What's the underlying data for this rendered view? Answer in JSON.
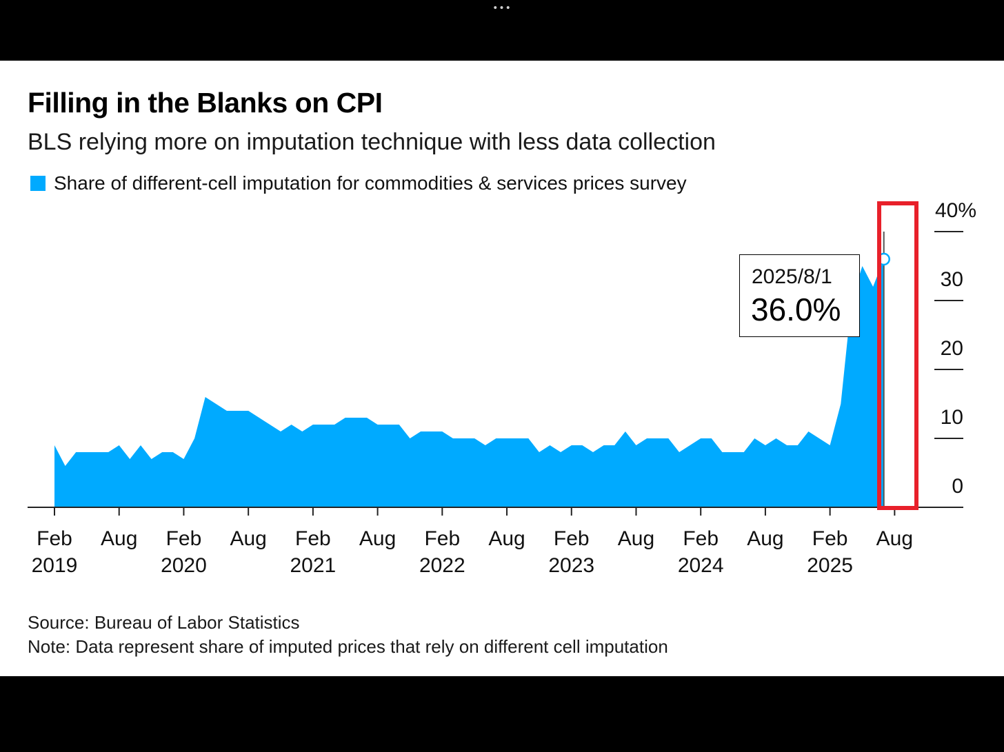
{
  "window": {
    "menu_dots": "•••"
  },
  "title": "Filling in the Blanks on CPI",
  "subtitle": "BLS relying more on imputation technique with less data collection",
  "legend": {
    "label": "Share of different-cell imputation for commodities & services prices survey",
    "color": "#00aaff"
  },
  "tooltip": {
    "date": "2025/8/1",
    "value": "36.0%"
  },
  "source": "Source: Bureau of Labor Statistics",
  "note": "Note: Data represent share of imputed prices that rely on different cell imputation",
  "colors": {
    "area": "#00aaff",
    "axis": "#222222",
    "highlight": "#e8202a",
    "marker_stroke": "#00aaff"
  },
  "chart_data": {
    "type": "area",
    "x_start": "2019-02",
    "x_end": "2025-08",
    "ylim": [
      0,
      40
    ],
    "yticks": [
      "0",
      "10",
      "20",
      "30",
      "40%"
    ],
    "xticks": [
      {
        "month": "Feb",
        "year": "2019"
      },
      {
        "month": "Aug",
        "year": ""
      },
      {
        "month": "Feb",
        "year": "2020"
      },
      {
        "month": "Aug",
        "year": ""
      },
      {
        "month": "Feb",
        "year": "2021"
      },
      {
        "month": "Aug",
        "year": ""
      },
      {
        "month": "Feb",
        "year": "2022"
      },
      {
        "month": "Aug",
        "year": ""
      },
      {
        "month": "Feb",
        "year": "2023"
      },
      {
        "month": "Aug",
        "year": ""
      },
      {
        "month": "Feb",
        "year": "2024"
      },
      {
        "month": "Aug",
        "year": ""
      },
      {
        "month": "Feb",
        "year": "2025"
      },
      {
        "month": "Aug",
        "year": ""
      }
    ],
    "series": [
      {
        "values": [
          9,
          6,
          8,
          8,
          8,
          8,
          9,
          7,
          9,
          7,
          8,
          8,
          7,
          10,
          16,
          15,
          14,
          14,
          14,
          13,
          12,
          11,
          12,
          11,
          12,
          12,
          12,
          13,
          13,
          13,
          12,
          12,
          12,
          10,
          11,
          11,
          11,
          10,
          10,
          10,
          9,
          10,
          10,
          10,
          10,
          8,
          9,
          8,
          9,
          9,
          8,
          9,
          9,
          11,
          9,
          10,
          10,
          10,
          8,
          9,
          10,
          10,
          8,
          8,
          8,
          10,
          9,
          10,
          9,
          9,
          11,
          10,
          9,
          15,
          30,
          35,
          32,
          36
        ]
      }
    ],
    "highlight_point": {
      "date": "2025-08",
      "value": 36.0
    }
  }
}
